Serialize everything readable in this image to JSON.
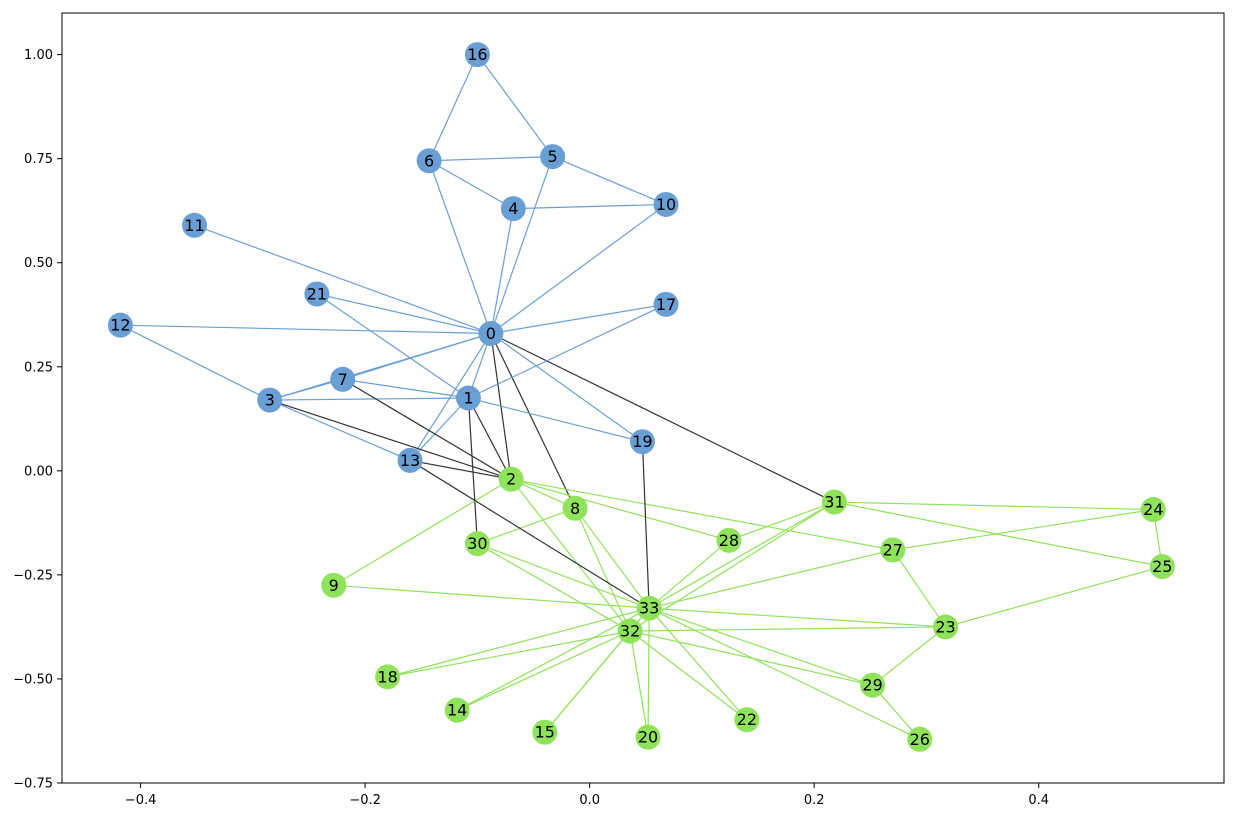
{
  "colors": {
    "community_a": "#6a9fd6",
    "community_b": "#8fe35a",
    "edge_a": "#6a9fd6",
    "edge_b": "#8fe35a",
    "edge_between": "#333333",
    "axis": "#000000"
  },
  "chart_data": {
    "type": "network",
    "xlim": [
      -0.47,
      0.565
    ],
    "ylim": [
      -0.75,
      1.1
    ],
    "x_ticks": [
      -0.4,
      -0.2,
      0.0,
      0.2,
      0.4
    ],
    "x_tick_labels": [
      "−0.4",
      "−0.2",
      "0.0",
      "0.2",
      "0.4"
    ],
    "y_ticks": [
      -0.75,
      -0.5,
      -0.25,
      0.0,
      0.25,
      0.5,
      0.75,
      1.0
    ],
    "y_tick_labels": [
      "−0.75",
      "−0.50",
      "−0.25",
      "0.00",
      "0.25",
      "0.50",
      "0.75",
      "1.00"
    ],
    "grid": false,
    "nodes": [
      {
        "label": "0",
        "x": -0.088,
        "y": 0.33,
        "group": "a"
      },
      {
        "label": "1",
        "x": -0.108,
        "y": 0.175,
        "group": "a"
      },
      {
        "label": "2",
        "x": -0.07,
        "y": -0.02,
        "group": "b"
      },
      {
        "label": "3",
        "x": -0.285,
        "y": 0.17,
        "group": "a"
      },
      {
        "label": "4",
        "x": -0.068,
        "y": 0.63,
        "group": "a"
      },
      {
        "label": "5",
        "x": -0.033,
        "y": 0.755,
        "group": "a"
      },
      {
        "label": "6",
        "x": -0.143,
        "y": 0.745,
        "group": "a"
      },
      {
        "label": "7",
        "x": -0.22,
        "y": 0.22,
        "group": "a"
      },
      {
        "label": "8",
        "x": -0.013,
        "y": -0.09,
        "group": "b"
      },
      {
        "label": "9",
        "x": -0.228,
        "y": -0.275,
        "group": "b"
      },
      {
        "label": "10",
        "x": 0.068,
        "y": 0.64,
        "group": "a"
      },
      {
        "label": "11",
        "x": -0.352,
        "y": 0.59,
        "group": "a"
      },
      {
        "label": "12",
        "x": -0.418,
        "y": 0.35,
        "group": "a"
      },
      {
        "label": "13",
        "x": -0.16,
        "y": 0.025,
        "group": "a"
      },
      {
        "label": "14",
        "x": -0.118,
        "y": -0.575,
        "group": "b"
      },
      {
        "label": "15",
        "x": -0.04,
        "y": -0.628,
        "group": "b"
      },
      {
        "label": "16",
        "x": -0.1,
        "y": 1.0,
        "group": "a"
      },
      {
        "label": "17",
        "x": 0.068,
        "y": 0.4,
        "group": "a"
      },
      {
        "label": "18",
        "x": -0.18,
        "y": -0.495,
        "group": "b"
      },
      {
        "label": "19",
        "x": 0.047,
        "y": 0.07,
        "group": "a"
      },
      {
        "label": "20",
        "x": 0.052,
        "y": -0.64,
        "group": "b"
      },
      {
        "label": "21",
        "x": -0.243,
        "y": 0.425,
        "group": "a"
      },
      {
        "label": "22",
        "x": 0.14,
        "y": -0.598,
        "group": "b"
      },
      {
        "label": "23",
        "x": 0.317,
        "y": -0.375,
        "group": "b"
      },
      {
        "label": "24",
        "x": 0.502,
        "y": -0.093,
        "group": "b"
      },
      {
        "label": "25",
        "x": 0.51,
        "y": -0.23,
        "group": "b"
      },
      {
        "label": "26",
        "x": 0.294,
        "y": -0.645,
        "group": "b"
      },
      {
        "label": "27",
        "x": 0.27,
        "y": -0.19,
        "group": "b"
      },
      {
        "label": "28",
        "x": 0.124,
        "y": -0.167,
        "group": "b"
      },
      {
        "label": "29",
        "x": 0.252,
        "y": -0.515,
        "group": "b"
      },
      {
        "label": "30",
        "x": -0.1,
        "y": -0.175,
        "group": "b"
      },
      {
        "label": "31",
        "x": 0.218,
        "y": -0.075,
        "group": "b"
      },
      {
        "label": "32",
        "x": 0.036,
        "y": -0.385,
        "group": "b"
      },
      {
        "label": "33",
        "x": 0.053,
        "y": -0.33,
        "group": "b"
      }
    ],
    "edges": [
      [
        "0",
        "1"
      ],
      [
        "0",
        "2"
      ],
      [
        "0",
        "3"
      ],
      [
        "0",
        "4"
      ],
      [
        "0",
        "5"
      ],
      [
        "0",
        "6"
      ],
      [
        "0",
        "7"
      ],
      [
        "0",
        "8"
      ],
      [
        "0",
        "10"
      ],
      [
        "0",
        "11"
      ],
      [
        "0",
        "12"
      ],
      [
        "0",
        "13"
      ],
      [
        "0",
        "17"
      ],
      [
        "0",
        "19"
      ],
      [
        "0",
        "21"
      ],
      [
        "0",
        "31"
      ],
      [
        "1",
        "2"
      ],
      [
        "1",
        "3"
      ],
      [
        "1",
        "7"
      ],
      [
        "1",
        "13"
      ],
      [
        "1",
        "17"
      ],
      [
        "1",
        "19"
      ],
      [
        "1",
        "21"
      ],
      [
        "1",
        "30"
      ],
      [
        "2",
        "3"
      ],
      [
        "2",
        "7"
      ],
      [
        "2",
        "8"
      ],
      [
        "2",
        "9"
      ],
      [
        "2",
        "13"
      ],
      [
        "2",
        "27"
      ],
      [
        "2",
        "28"
      ],
      [
        "2",
        "32"
      ],
      [
        "3",
        "7"
      ],
      [
        "3",
        "12"
      ],
      [
        "3",
        "13"
      ],
      [
        "4",
        "6"
      ],
      [
        "4",
        "10"
      ],
      [
        "5",
        "6"
      ],
      [
        "5",
        "10"
      ],
      [
        "5",
        "16"
      ],
      [
        "6",
        "16"
      ],
      [
        "8",
        "30"
      ],
      [
        "8",
        "32"
      ],
      [
        "8",
        "33"
      ],
      [
        "9",
        "33"
      ],
      [
        "13",
        "33"
      ],
      [
        "14",
        "32"
      ],
      [
        "14",
        "33"
      ],
      [
        "15",
        "32"
      ],
      [
        "15",
        "33"
      ],
      [
        "18",
        "32"
      ],
      [
        "18",
        "33"
      ],
      [
        "19",
        "33"
      ],
      [
        "20",
        "32"
      ],
      [
        "20",
        "33"
      ],
      [
        "22",
        "32"
      ],
      [
        "22",
        "33"
      ],
      [
        "23",
        "25"
      ],
      [
        "23",
        "27"
      ],
      [
        "23",
        "29"
      ],
      [
        "23",
        "32"
      ],
      [
        "23",
        "33"
      ],
      [
        "24",
        "25"
      ],
      [
        "24",
        "27"
      ],
      [
        "24",
        "31"
      ],
      [
        "25",
        "31"
      ],
      [
        "26",
        "29"
      ],
      [
        "26",
        "33"
      ],
      [
        "27",
        "33"
      ],
      [
        "28",
        "31"
      ],
      [
        "28",
        "33"
      ],
      [
        "29",
        "32"
      ],
      [
        "29",
        "33"
      ],
      [
        "30",
        "32"
      ],
      [
        "30",
        "33"
      ],
      [
        "31",
        "32"
      ],
      [
        "31",
        "33"
      ],
      [
        "32",
        "33"
      ]
    ]
  }
}
